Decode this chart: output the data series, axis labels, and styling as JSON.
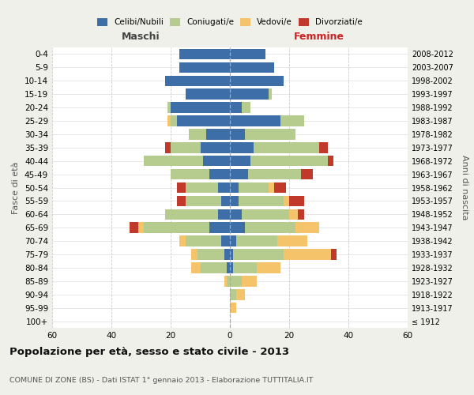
{
  "age_groups": [
    "0-4",
    "5-9",
    "10-14",
    "15-19",
    "20-24",
    "25-29",
    "30-34",
    "35-39",
    "40-44",
    "45-49",
    "50-54",
    "55-59",
    "60-64",
    "65-69",
    "70-74",
    "75-79",
    "80-84",
    "85-89",
    "90-94",
    "95-99",
    "100+"
  ],
  "birth_years": [
    "2008-2012",
    "2003-2007",
    "1998-2002",
    "1993-1997",
    "1988-1992",
    "1983-1987",
    "1978-1982",
    "1973-1977",
    "1968-1972",
    "1963-1967",
    "1958-1962",
    "1953-1957",
    "1948-1952",
    "1943-1947",
    "1938-1942",
    "1933-1937",
    "1928-1932",
    "1923-1927",
    "1918-1922",
    "1913-1917",
    "≤ 1912"
  ],
  "male": {
    "celibi": [
      17,
      17,
      22,
      15,
      20,
      18,
      8,
      10,
      9,
      7,
      4,
      3,
      4,
      7,
      3,
      2,
      1,
      0,
      0,
      0,
      0
    ],
    "coniugati": [
      0,
      0,
      0,
      0,
      1,
      2,
      6,
      10,
      20,
      13,
      11,
      12,
      18,
      22,
      12,
      9,
      9,
      1,
      0,
      0,
      0
    ],
    "vedovi": [
      0,
      0,
      0,
      0,
      0,
      1,
      0,
      0,
      0,
      0,
      0,
      0,
      0,
      2,
      2,
      2,
      3,
      1,
      0,
      0,
      0
    ],
    "divorziati": [
      0,
      0,
      0,
      0,
      0,
      0,
      0,
      2,
      0,
      0,
      3,
      3,
      0,
      3,
      0,
      0,
      0,
      0,
      0,
      0,
      0
    ]
  },
  "female": {
    "nubili": [
      12,
      15,
      18,
      13,
      4,
      17,
      5,
      8,
      7,
      6,
      3,
      3,
      4,
      5,
      2,
      1,
      1,
      0,
      0,
      0,
      0
    ],
    "coniugate": [
      0,
      0,
      0,
      1,
      3,
      8,
      17,
      22,
      26,
      18,
      10,
      15,
      16,
      17,
      14,
      17,
      8,
      4,
      2,
      0,
      0
    ],
    "vedove": [
      0,
      0,
      0,
      0,
      0,
      0,
      0,
      0,
      0,
      0,
      2,
      2,
      3,
      8,
      10,
      16,
      8,
      5,
      3,
      2,
      0
    ],
    "divorziate": [
      0,
      0,
      0,
      0,
      0,
      0,
      0,
      3,
      2,
      4,
      4,
      5,
      2,
      0,
      0,
      2,
      0,
      0,
      0,
      0,
      0
    ]
  },
  "colors": {
    "celibi": "#3d6ea8",
    "coniugati": "#b5cc8e",
    "vedovi": "#f5c46a",
    "divorziati": "#c0392b"
  },
  "xlim": 60,
  "title": "Popolazione per età, sesso e stato civile - 2013",
  "subtitle": "COMUNE DI ZONE (BS) - Dati ISTAT 1° gennaio 2013 - Elaborazione TUTTITALIA.IT",
  "ylabel_left": "Fasce di età",
  "ylabel_right": "Anni di nascita",
  "xlabel_left": "Maschi",
  "xlabel_right": "Femmine",
  "bg_color": "#f0f0eb",
  "plot_bg_color": "#ffffff"
}
